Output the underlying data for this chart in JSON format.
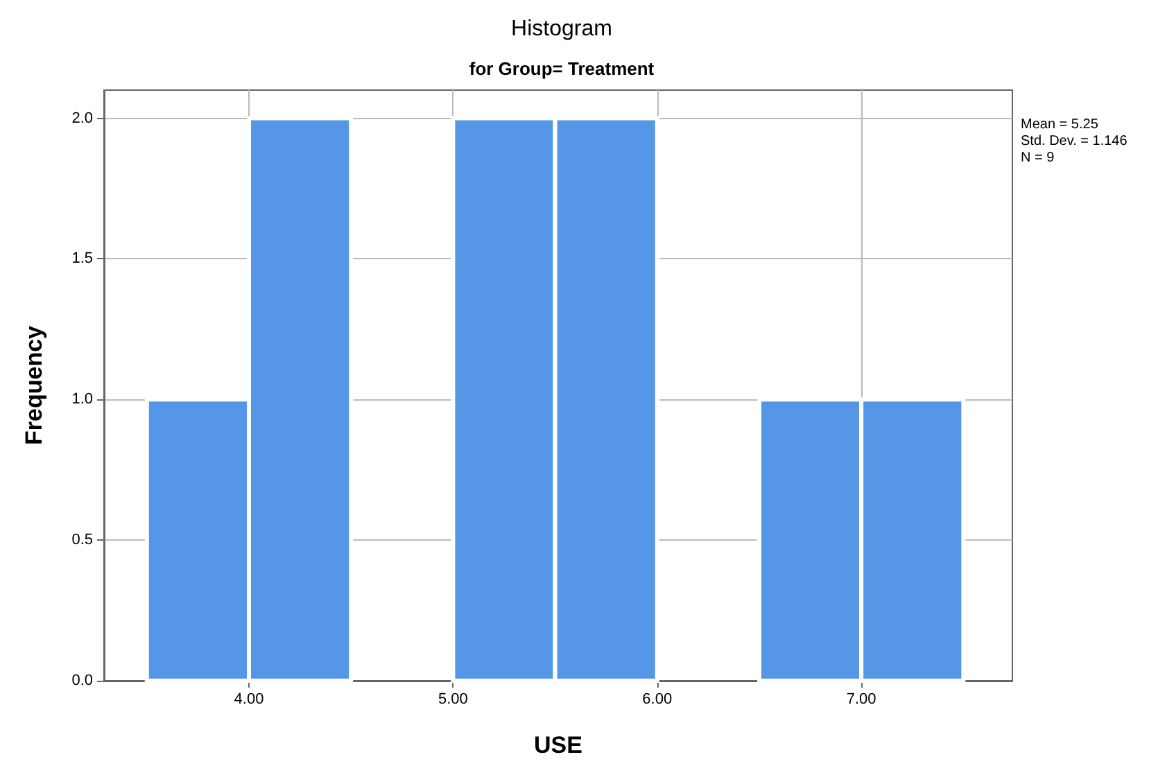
{
  "chart_data": {
    "type": "histogram",
    "title": "Histogram",
    "subtitle": "for Group= Treatment",
    "xlabel": "USE",
    "ylabel": "Frequency",
    "bins": [
      3.5,
      4,
      4.5,
      5,
      5.5,
      6,
      6.5,
      7,
      7.5
    ],
    "values": [
      1,
      2,
      0,
      2,
      2,
      0,
      1,
      1
    ],
    "color": "#5596e6",
    "xlim": [
      3.29,
      7.74
    ],
    "xticks": [
      {
        "value": 4,
        "label": "4.00"
      },
      {
        "value": 5,
        "label": "5.00"
      },
      {
        "value": 6,
        "label": "6.00"
      },
      {
        "value": 7,
        "label": "7.00"
      }
    ],
    "ylim": [
      0,
      2.1
    ],
    "yticks": [
      {
        "value": 0,
        "label": "0.0"
      },
      {
        "value": 0.5,
        "label": "0.5"
      },
      {
        "value": 1,
        "label": "1.0"
      },
      {
        "value": 1.5,
        "label": "1.5"
      },
      {
        "value": 2,
        "label": "2.0"
      }
    ],
    "grid": true,
    "annotations": [
      "Mean = 5.25",
      "Std. Dev. = 1.146",
      "N = 9"
    ]
  }
}
